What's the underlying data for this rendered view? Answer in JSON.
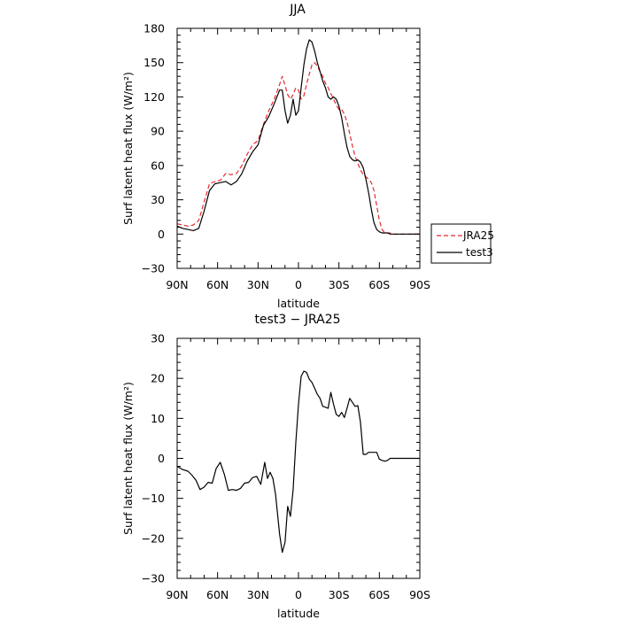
{
  "chart_data": [
    {
      "type": "line",
      "title": "JJA",
      "xlabel": "latitude",
      "ylabel": "Surf latent heat flux (W/m²)",
      "xlim": [
        90,
        -90
      ],
      "ylim": [
        -30,
        180
      ],
      "x_ticks": [
        90,
        60,
        30,
        0,
        -30,
        -60,
        -90
      ],
      "x_tick_labels": [
        "90N",
        "60N",
        "30N",
        "0",
        "30S",
        "60S",
        "90S"
      ],
      "y_ticks": [
        -30,
        0,
        30,
        60,
        90,
        120,
        150,
        180
      ],
      "y_tick_labels": [
        "−30",
        "0",
        "30",
        "60",
        "90",
        "120",
        "150",
        "180"
      ],
      "legend_position": "outside-right",
      "series": [
        {
          "name": "JRA25",
          "color": "#e8282e",
          "dash": "dashed",
          "x": [
            90,
            86,
            82,
            78,
            74,
            70,
            66,
            62,
            58,
            54,
            50,
            46,
            42,
            38,
            34,
            30,
            26,
            22,
            18,
            14,
            12,
            10,
            8,
            6,
            4,
            2,
            0,
            -2,
            -4,
            -6,
            -8,
            -10,
            -12,
            -14,
            -16,
            -18,
            -20,
            -22,
            -24,
            -26,
            -28,
            -30,
            -32,
            -34,
            -36,
            -38,
            -40,
            -42,
            -44,
            -46,
            -48,
            -50,
            -52,
            -54,
            -56,
            -58,
            -60,
            -62,
            -64,
            -66,
            -68,
            -70,
            -72,
            -74,
            -76,
            -78,
            -80,
            -82,
            -84,
            -86,
            -88,
            -90
          ],
          "y": [
            9,
            8,
            7,
            8,
            12,
            28,
            44,
            46,
            47,
            53,
            52,
            53,
            60,
            70,
            78,
            82,
            96,
            108,
            118,
            131,
            138,
            130,
            122,
            118,
            122,
            128,
            126,
            118,
            121,
            131,
            140,
            148,
            150,
            147,
            142,
            138,
            132,
            128,
            123,
            118,
            113,
            109,
            109,
            105,
            98,
            88,
            77,
            68,
            62,
            56,
            52,
            50,
            48,
            45,
            38,
            25,
            12,
            4,
            1,
            1,
            1,
            0,
            0,
            0,
            0,
            0,
            0,
            0,
            0,
            0,
            0,
            0
          ]
        },
        {
          "name": "test3",
          "color": "#000000",
          "dash": "solid",
          "x": [
            90,
            86,
            82,
            78,
            74,
            70,
            66,
            62,
            58,
            54,
            50,
            46,
            42,
            38,
            34,
            30,
            26,
            22,
            18,
            14,
            12,
            10,
            8,
            6,
            4,
            2,
            0,
            -2,
            -4,
            -6,
            -8,
            -10,
            -12,
            -14,
            -16,
            -18,
            -20,
            -22,
            -24,
            -26,
            -28,
            -30,
            -32,
            -34,
            -36,
            -38,
            -40,
            -42,
            -44,
            -46,
            -48,
            -50,
            -52,
            -54,
            -56,
            -58,
            -60,
            -62,
            -64,
            -66,
            -68,
            -70,
            -72,
            -74,
            -76,
            -78,
            -80,
            -82,
            -84,
            -86,
            -88,
            -90
          ],
          "y": [
            7,
            5,
            4,
            3,
            5,
            20,
            38,
            44,
            45,
            46,
            43,
            46,
            53,
            64,
            72,
            78,
            95,
            103,
            114,
            126,
            126,
            108,
            97,
            104,
            118,
            104,
            108,
            128,
            148,
            162,
            170,
            168,
            160,
            150,
            142,
            134,
            128,
            120,
            118,
            120,
            118,
            112,
            102,
            88,
            76,
            68,
            65,
            64,
            65,
            63,
            58,
            48,
            36,
            22,
            10,
            4,
            2,
            1,
            1,
            1,
            0,
            0,
            0,
            0,
            0,
            0,
            0,
            0,
            0,
            0,
            0,
            0
          ]
        }
      ]
    },
    {
      "type": "line",
      "title": "test3 − JRA25",
      "xlabel": "latitude",
      "ylabel": "Surf latent heat flux (W/m²)",
      "xlim": [
        90,
        -90
      ],
      "ylim": [
        -30,
        30
      ],
      "x_ticks": [
        90,
        60,
        30,
        0,
        -30,
        -60,
        -90
      ],
      "x_tick_labels": [
        "90N",
        "60N",
        "30N",
        "0",
        "30S",
        "60S",
        "90S"
      ],
      "y_ticks": [
        -30,
        -20,
        -10,
        0,
        10,
        20,
        30
      ],
      "y_tick_labels": [
        "−30",
        "−20",
        "−10",
        "0",
        "10",
        "20",
        "30"
      ],
      "series": [
        {
          "color": "#000000",
          "dash": "solid",
          "x": [
            90,
            86,
            82,
            79,
            76,
            73,
            70,
            67,
            64,
            61,
            58,
            55,
            52,
            49,
            46,
            43,
            40,
            37,
            34,
            31,
            28,
            25,
            23,
            21,
            19,
            17,
            14,
            12,
            10,
            8,
            6,
            4,
            2,
            0,
            -2,
            -4,
            -6,
            -8,
            -10,
            -12,
            -14,
            -16,
            -18,
            -20,
            -22,
            -24,
            -26,
            -28,
            -30,
            -32,
            -34,
            -36,
            -38,
            -40,
            -42,
            -44,
            -46,
            -48,
            -50,
            -52,
            -54,
            -56,
            -58,
            -60,
            -62,
            -64,
            -66,
            -68,
            -70,
            -72,
            -74,
            -76,
            -78,
            -80,
            -82,
            -84,
            -86,
            -88,
            -90
          ],
          "y": [
            -2,
            -2.8,
            -3.2,
            -4.2,
            -5.5,
            -7.8,
            -7.2,
            -6,
            -6.2,
            -2.5,
            -1,
            -4,
            -8,
            -7.8,
            -8,
            -7.5,
            -6.2,
            -6,
            -4.8,
            -4.5,
            -6.5,
            -1,
            -5,
            -3.5,
            -5,
            -9,
            -19,
            -23.5,
            -21,
            -12,
            -14.5,
            -8,
            4,
            13.5,
            20.5,
            21.8,
            21.5,
            19.8,
            19,
            17.5,
            16,
            15,
            13,
            12.8,
            12.5,
            16.5,
            13.5,
            11,
            10.5,
            11.5,
            10.2,
            12.5,
            15,
            14,
            13,
            13.2,
            9,
            1,
            1,
            1.5,
            1.5,
            1.5,
            1.5,
            -0.2,
            -0.5,
            -0.7,
            -0.5,
            0,
            0,
            0,
            0,
            0,
            0,
            0,
            0,
            0,
            0,
            0,
            0
          ]
        }
      ]
    }
  ]
}
